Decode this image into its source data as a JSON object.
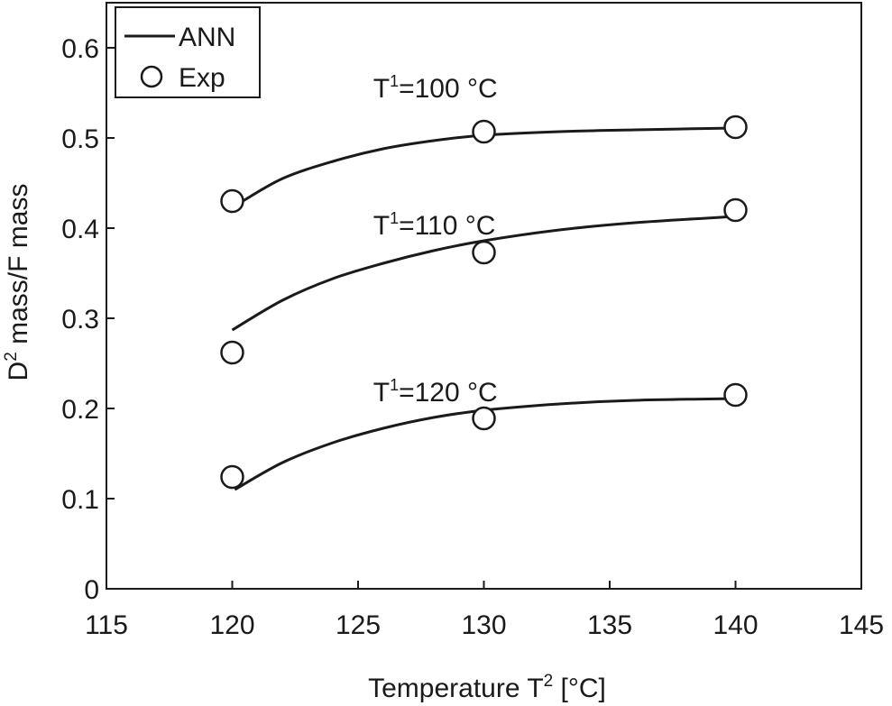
{
  "chart_data": {
    "type": "line",
    "xlabel": {
      "main": "Temperature T",
      "sup": "2",
      "rest": " [°C]"
    },
    "ylabel": {
      "main": "D",
      "sup": "2",
      "rest": " mass/F mass"
    },
    "xlim": [
      115,
      145
    ],
    "ylim": [
      0,
      0.65
    ],
    "xticks": [
      115,
      120,
      125,
      130,
      135,
      140,
      145
    ],
    "xtick_labels": [
      "115",
      "120",
      "125",
      "130",
      "135",
      "140",
      "145"
    ],
    "yticks": [
      0,
      0.1,
      0.2,
      0.3,
      0.4,
      0.5,
      0.6
    ],
    "ytick_labels": [
      "0",
      "0.1",
      "0.2",
      "0.3",
      "0.4",
      "0.5",
      "0.6"
    ],
    "grid": false,
    "legend": {
      "position": "top-left",
      "entries": [
        {
          "label": "ANN",
          "marker": "line"
        },
        {
          "label": "Exp",
          "marker": "circle"
        }
      ]
    },
    "annotations": [
      {
        "main": "T",
        "sup": "1",
        "rest": "=100 °C",
        "x": 125.6,
        "y": 0.545
      },
      {
        "main": "T",
        "sup": "1",
        "rest": "=110 °C",
        "x": 125.6,
        "y": 0.393
      },
      {
        "main": "T",
        "sup": "1",
        "rest": "=120 °C",
        "x": 125.6,
        "y": 0.208
      }
    ],
    "series": [
      {
        "group": "T1=100 °C",
        "exp": [
          [
            120,
            0.43
          ],
          [
            130,
            0.507
          ],
          [
            140,
            0.512
          ]
        ],
        "ann": [
          [
            120.3,
            0.428
          ],
          [
            122,
            0.455
          ],
          [
            124,
            0.474
          ],
          [
            126,
            0.488
          ],
          [
            128,
            0.497
          ],
          [
            130,
            0.503
          ],
          [
            133,
            0.507
          ],
          [
            136,
            0.509
          ],
          [
            140,
            0.511
          ]
        ]
      },
      {
        "group": "T1=110 °C",
        "exp": [
          [
            120,
            0.262
          ],
          [
            130,
            0.373
          ],
          [
            140,
            0.42
          ]
        ],
        "ann": [
          [
            120,
            0.287
          ],
          [
            122,
            0.32
          ],
          [
            124,
            0.344
          ],
          [
            126,
            0.361
          ],
          [
            128,
            0.375
          ],
          [
            130,
            0.386
          ],
          [
            133,
            0.398
          ],
          [
            136,
            0.406
          ],
          [
            140,
            0.413
          ]
        ]
      },
      {
        "group": "T1=120 °C",
        "exp": [
          [
            120,
            0.124
          ],
          [
            130,
            0.189
          ],
          [
            140,
            0.215
          ]
        ],
        "ann": [
          [
            120.1,
            0.11
          ],
          [
            122,
            0.14
          ],
          [
            124,
            0.162
          ],
          [
            126,
            0.178
          ],
          [
            128,
            0.19
          ],
          [
            130,
            0.198
          ],
          [
            133,
            0.205
          ],
          [
            136,
            0.209
          ],
          [
            140,
            0.211
          ]
        ]
      }
    ]
  }
}
